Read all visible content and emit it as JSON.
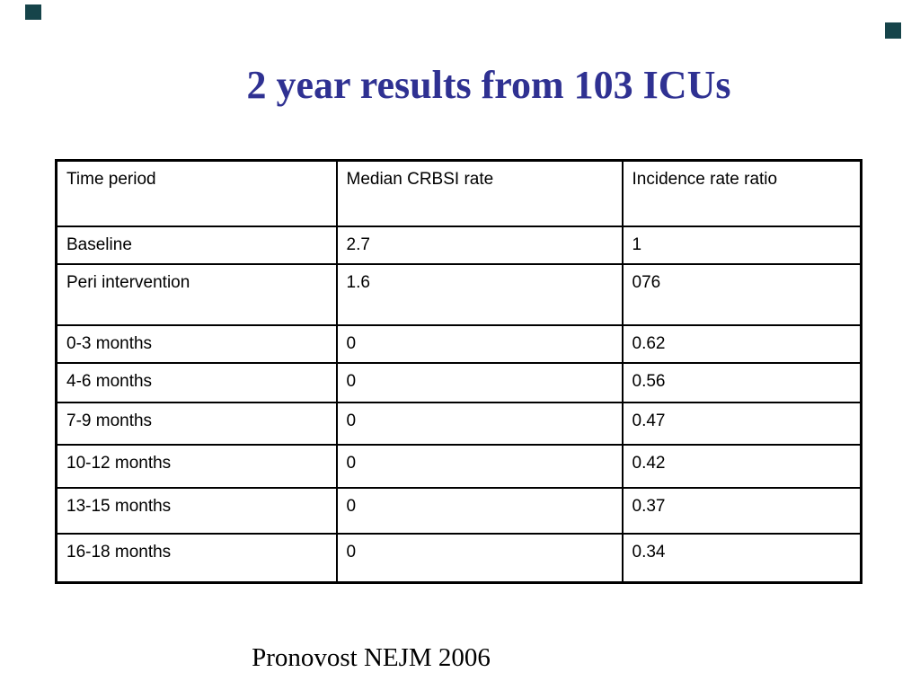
{
  "slide": {
    "title": "2 year results from 103 ICUs",
    "title_color": "#2F3192",
    "citation": "Pronovost NEJM 2006",
    "background_color": "#ffffff"
  },
  "decor": {
    "corner_marker_color": "#16444A"
  },
  "table": {
    "columns": [
      "Time period",
      "Median CRBSI rate",
      "Incidence rate ratio"
    ],
    "rows": [
      [
        "Baseline",
        "2.7",
        "1"
      ],
      [
        "Peri intervention",
        "1.6",
        "076"
      ],
      [
        "0-3 months",
        "0",
        "0.62"
      ],
      [
        "4-6 months",
        "0",
        "0.56"
      ],
      [
        "7-9 months",
        "0",
        "0.47"
      ],
      [
        "10-12 months",
        "0",
        "0.42"
      ],
      [
        "13-15 months",
        "0",
        "0.37"
      ],
      [
        "16-18 months",
        "0",
        "0.34"
      ]
    ],
    "border_color": "#000000",
    "text_color": "#000000"
  }
}
